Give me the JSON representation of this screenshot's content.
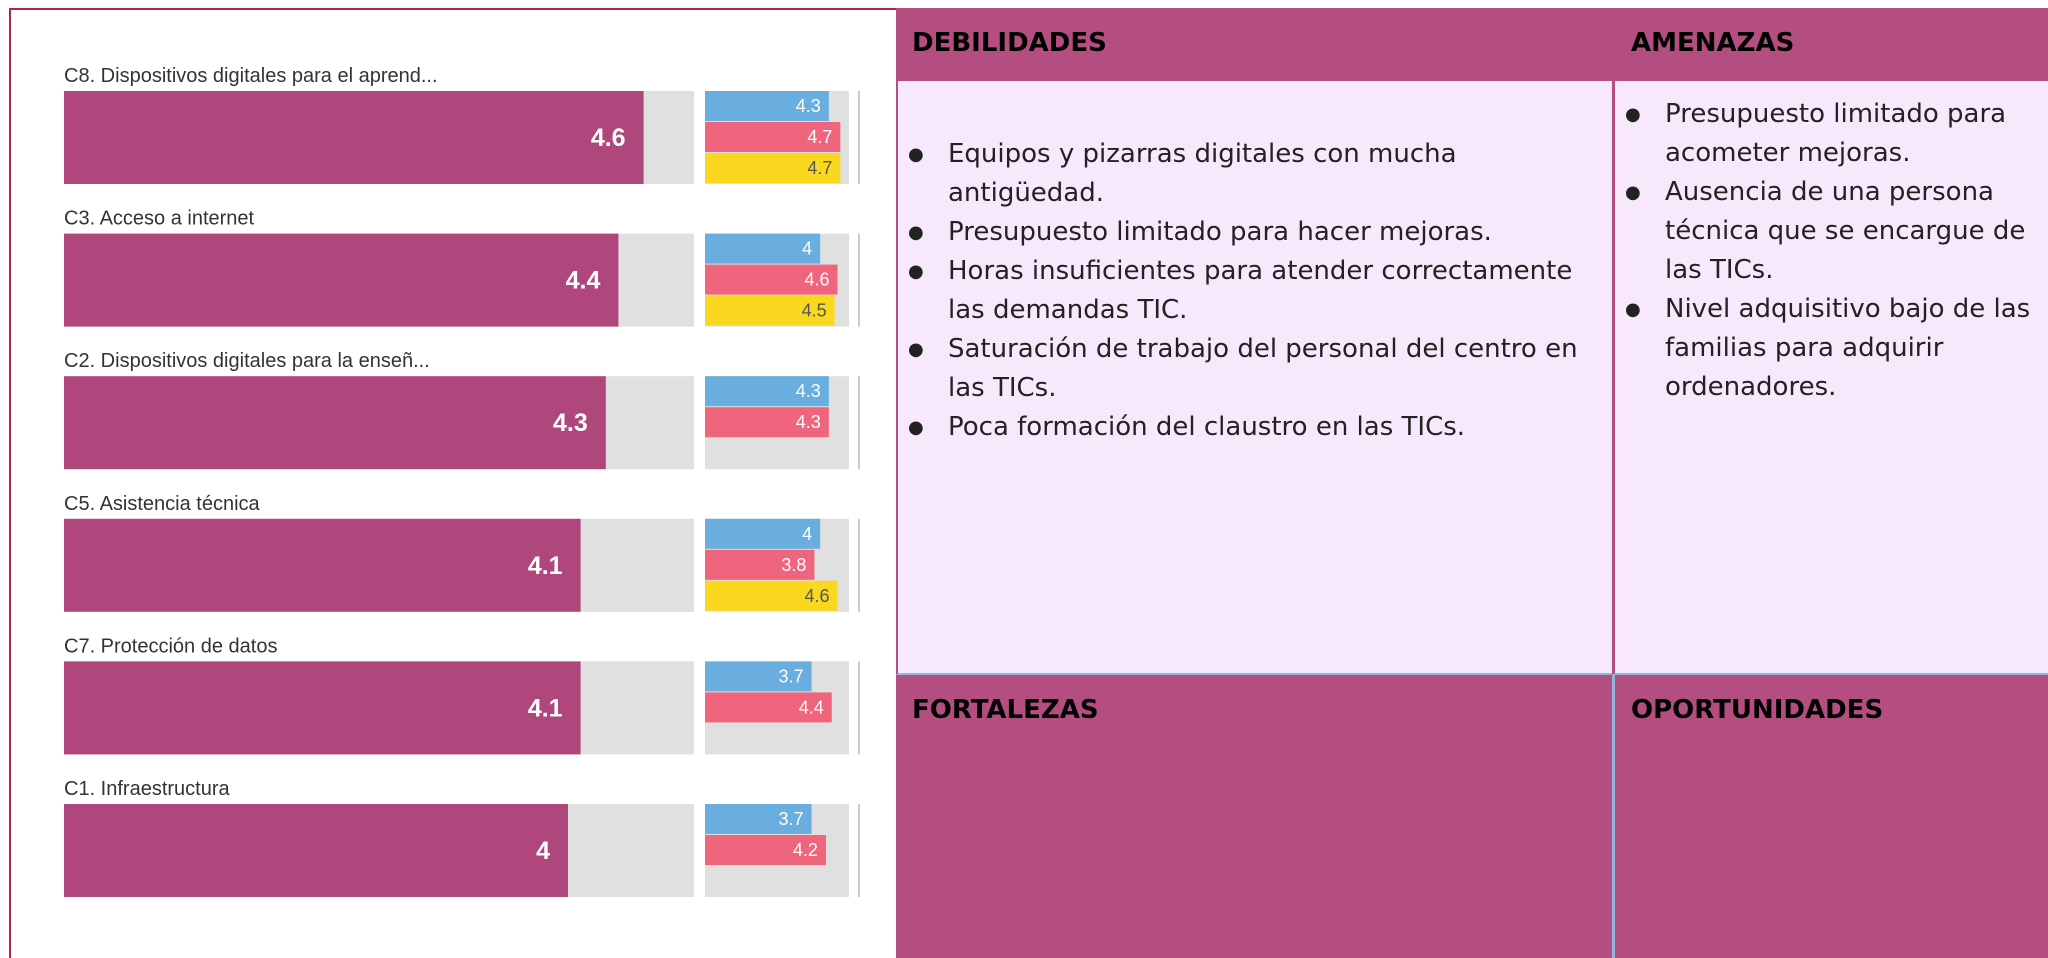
{
  "chart_data": {
    "type": "bar",
    "categories": [
      "C8. Dispositivos digitales para el aprend...",
      "C3. Acceso a internet",
      "C2. Dispositivos digitales para la enseñ...",
      "C5. Asistencia técnica",
      "C7. Protección de datos",
      "C1. Infraestructura"
    ],
    "values": [
      4.6,
      4.4,
      4.3,
      4.1,
      4.1,
      4
    ],
    "color": "#b0477c",
    "xlim": [
      0,
      5
    ],
    "series": [
      {
        "color": "#6aaee0",
        "values": [
          4.3,
          4,
          4.3,
          4,
          3.7,
          3.7
        ]
      },
      {
        "color": "#f0657e",
        "values": [
          4.7,
          4.6,
          4.3,
          3.8,
          4.4,
          4.2
        ]
      },
      {
        "color": "#fbd820",
        "values": [
          4.7,
          4.5,
          null,
          4.6,
          null,
          null
        ]
      }
    ]
  },
  "swot": {
    "debilidades": {
      "title": "DEBILIDADES",
      "items": [
        "Equipos y pizarras digitales con mucha antigüedad.",
        "Presupuesto limitado para hacer mejoras.",
        "Horas insuficientes para atender correctamente las demandas TIC.",
        "Saturación de trabajo del personal del centro en las TICs.",
        "Poca formación del claustro en las TICs."
      ]
    },
    "amenazas": {
      "title": "AMENAZAS",
      "items": [
        "Presupuesto limitado para acometer mejoras.",
        "Ausencia de una persona técnica que se encargue de las TICs.",
        "Nivel adquisitivo bajo de las familias para adquirir ordenadores."
      ]
    },
    "fortalezas": {
      "title": "FORTALEZAS"
    },
    "oportunidades": {
      "title": "OPORTUNIDADES"
    }
  }
}
